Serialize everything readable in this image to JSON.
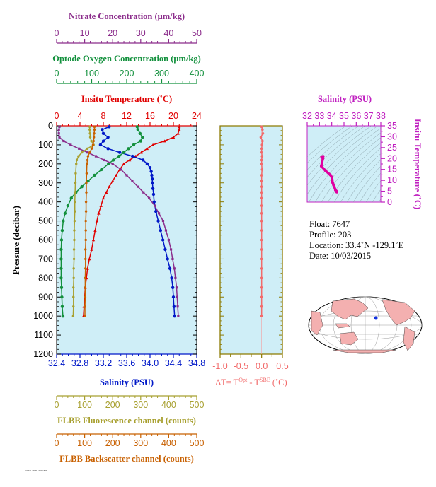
{
  "colors": {
    "plot_bg": "#cfeef7",
    "nitrate": "#8b2c8b",
    "oxygen": "#12903c",
    "temperature": "#e00000",
    "salinity": "#0018c8",
    "fluorescence": "#a8a030",
    "backscatter": "#c86000",
    "delta_t": "#f26b6b",
    "ts_curve": "#e000a0",
    "ts_axis": "#c020c0",
    "frame_olive": "#8c7a00"
  },
  "axes": {
    "nitrate": {
      "label": "Nitrate Concentration (μm/kg)",
      "ticks": [
        "0",
        "10",
        "20",
        "30",
        "40",
        "50"
      ]
    },
    "oxygen": {
      "label": "Optode Oxygen Concentration (μm/kg)",
      "ticks": [
        "0",
        "100",
        "200",
        "300",
        "400"
      ]
    },
    "temperature": {
      "label": "Insitu Temperature (˚C)",
      "ticks": [
        "0",
        "4",
        "8",
        "12",
        "16",
        "20",
        "24"
      ]
    },
    "salinity": {
      "label": "Salinity (PSU)",
      "ticks": [
        "32.4",
        "32.8",
        "33.2",
        "33.6",
        "34.0",
        "34.4",
        "34.8"
      ]
    },
    "fluorescence": {
      "label": "FLBB Fluorescence channel (counts)",
      "ticks": [
        "0",
        "100",
        "200",
        "300",
        "400",
        "500"
      ]
    },
    "backscatter": {
      "label": "FLBB Backscatter channel (counts)",
      "ticks": [
        "0",
        "100",
        "200",
        "300",
        "400",
        "500"
      ]
    },
    "pressure": {
      "label": "Pressure (decibar)",
      "ticks": [
        "0",
        "100",
        "200",
        "300",
        "400",
        "500",
        "600",
        "700",
        "800",
        "900",
        "1000",
        "1100",
        "1200"
      ]
    },
    "delta_t": {
      "label_main": "∆T= T",
      "label_sup1": "Opt",
      "label_mid": " - T",
      "label_sup2": "SBE",
      "label_end": " (˚C)",
      "ticks": [
        "-1.0",
        "-0.5",
        "0.0",
        "0.5"
      ]
    },
    "ts_salinity": {
      "label": "Salinity (PSU)",
      "ticks": [
        "32",
        "33",
        "34",
        "35",
        "36",
        "37",
        "38"
      ]
    },
    "ts_temperature": {
      "label": "Insitu Temperature (˚C)",
      "ticks": [
        "0",
        "5",
        "10",
        "15",
        "20",
        "25",
        "30",
        "35"
      ]
    }
  },
  "info": {
    "float_line": "Float:  7647",
    "profile_line": "Profile:  203",
    "location_line": "Location:  33.4˚N  -129.1˚E",
    "date_line": "Date:  10/03/2015"
  },
  "footer_tiny": "AOML 2015-10-03 T00",
  "chart_data": [
    {
      "type": "line",
      "title": "",
      "ylabel": "Pressure (decibar)",
      "ylim": [
        1200,
        0
      ],
      "series": [
        {
          "name": "Insitu Temperature (˚C)",
          "axis": "temperature",
          "xlim": [
            0,
            24
          ],
          "pressure": [
            5,
            20,
            40,
            60,
            80,
            100,
            120,
            140,
            160,
            180,
            200,
            230,
            260,
            290,
            320,
            350,
            380,
            420,
            460,
            500,
            550,
            600,
            650,
            700,
            750,
            800,
            850,
            900,
            950,
            1000
          ],
          "values": [
            21.0,
            21.0,
            20.8,
            20.0,
            18.5,
            16.5,
            15.5,
            14.5,
            13.5,
            12.5,
            11.5,
            10.8,
            10.2,
            9.6,
            9.0,
            8.5,
            8.0,
            7.6,
            7.2,
            6.9,
            6.6,
            6.3,
            6.0,
            5.6,
            5.3,
            5.1,
            4.9,
            4.8,
            4.7,
            4.6
          ]
        },
        {
          "name": "Salinity (PSU)",
          "axis": "salinity",
          "xlim": [
            32.4,
            34.8
          ],
          "pressure": [
            5,
            20,
            40,
            60,
            80,
            100,
            120,
            140,
            160,
            180,
            200,
            220,
            240,
            260,
            280,
            300,
            330,
            360,
            400,
            450,
            500,
            550,
            600,
            650,
            700,
            750,
            800,
            850,
            900,
            950,
            1000
          ],
          "values": [
            33.3,
            33.18,
            33.2,
            33.28,
            33.2,
            33.15,
            33.28,
            33.48,
            33.7,
            33.88,
            33.95,
            34.0,
            34.02,
            34.03,
            34.04,
            34.04,
            34.05,
            34.06,
            34.07,
            34.1,
            34.14,
            34.18,
            34.22,
            34.26,
            34.3,
            34.34,
            34.37,
            34.39,
            34.4,
            34.41,
            34.42
          ]
        },
        {
          "name": "Optode Oxygen Concentration (μm/kg)",
          "axis": "oxygen",
          "xlim": [
            0,
            400
          ],
          "pressure": [
            5,
            20,
            40,
            60,
            80,
            100,
            120,
            140,
            160,
            180,
            200,
            230,
            260,
            290,
            320,
            350,
            380,
            420,
            460,
            500,
            550,
            600,
            650,
            700,
            750,
            800,
            850,
            900,
            950,
            1000
          ],
          "values": [
            230,
            232,
            238,
            245,
            240,
            220,
            205,
            192,
            178,
            162,
            148,
            128,
            108,
            90,
            72,
            55,
            42,
            32,
            24,
            19,
            16,
            14,
            13,
            13,
            13,
            13,
            14,
            15,
            16,
            18
          ]
        },
        {
          "name": "Nitrate Concentration (μm/kg)",
          "axis": "nitrate",
          "xlim": [
            0,
            50
          ],
          "pressure": [
            5,
            20,
            40,
            60,
            80,
            100,
            120,
            140,
            160,
            180,
            200,
            230,
            260,
            290,
            320,
            350,
            380,
            420,
            460,
            500,
            550,
            600,
            650,
            700,
            750,
            800,
            850,
            900,
            950,
            1000
          ],
          "values": [
            1.0,
            0.8,
            0.8,
            1.0,
            2.5,
            5.0,
            8.0,
            11.0,
            14.0,
            17.0,
            20.0,
            23.0,
            25.0,
            27.0,
            29.0,
            31.0,
            33.0,
            35.0,
            36.5,
            38.0,
            39.0,
            40.0,
            40.8,
            41.4,
            42.0,
            42.4,
            42.8,
            43.0,
            43.2,
            43.4
          ]
        },
        {
          "name": "FLBB Fluorescence channel (counts)",
          "axis": "fluorescence",
          "xlim": [
            0,
            500
          ],
          "pressure": [
            5,
            20,
            40,
            60,
            80,
            100,
            120,
            140,
            160,
            180,
            200,
            250,
            300,
            350,
            400,
            450,
            500,
            550,
            600,
            650,
            700,
            750,
            800,
            850,
            900,
            950,
            1000
          ],
          "values": [
            118,
            118,
            119,
            120,
            124,
            132,
            110,
            90,
            78,
            72,
            70,
            68,
            67,
            66,
            65,
            65,
            64,
            63,
            63,
            62,
            62,
            61,
            61,
            60,
            60,
            60,
            59
          ]
        },
        {
          "name": "FLBB Backscatter channel (counts)",
          "axis": "backscatter",
          "xlim": [
            0,
            500
          ],
          "pressure": [
            5,
            20,
            40,
            60,
            80,
            100,
            120,
            140,
            160,
            180,
            200,
            250,
            300,
            350,
            400,
            450,
            500,
            550,
            600,
            650,
            700,
            750,
            800,
            850,
            900,
            950,
            1000
          ],
          "values": [
            135,
            135,
            134,
            133,
            132,
            130,
            125,
            118,
            112,
            110,
            108,
            107,
            106,
            106,
            105,
            105,
            104,
            104,
            104,
            103,
            103,
            103,
            102,
            102,
            102,
            101,
            101
          ]
        }
      ]
    },
    {
      "type": "scatter",
      "xlabel": "∆T= T^Opt - T^SBE (˚C)",
      "ylabel": "",
      "xlim": [
        -1.0,
        0.5
      ],
      "ylim": [
        1200,
        0
      ],
      "pressure": [
        5,
        20,
        40,
        60,
        80,
        100,
        120,
        140,
        160,
        180,
        200,
        230,
        260,
        290,
        320,
        350,
        380,
        420,
        460,
        500,
        550,
        600,
        650,
        700,
        750,
        800,
        850,
        900,
        950,
        1000
      ],
      "values": [
        0.0,
        0.02,
        0.03,
        -0.02,
        0.02,
        0.01,
        0.0,
        0.0,
        0.01,
        0.0,
        0.0,
        0.01,
        0.0,
        0.0,
        0.0,
        0.0,
        0.0,
        0.0,
        0.0,
        0.0,
        0.0,
        0.0,
        0.0,
        0.0,
        0.0,
        0.0,
        0.0,
        0.0,
        0.0,
        0.0
      ]
    },
    {
      "type": "line",
      "xlabel": "Salinity (PSU)",
      "ylabel": "Insitu Temperature (˚C)",
      "xlim": [
        32,
        38
      ],
      "ylim": [
        0,
        35
      ],
      "salinity": [
        33.3,
        33.18,
        33.28,
        33.15,
        33.48,
        33.88,
        34.0,
        34.04,
        34.07,
        34.14,
        34.22,
        34.3,
        34.37,
        34.41,
        34.42
      ],
      "temperature": [
        21.0,
        20.8,
        20.0,
        16.5,
        14.5,
        12.5,
        11.5,
        10.2,
        9.0,
        8.0,
        6.9,
        5.6,
        5.1,
        4.7,
        4.6
      ]
    }
  ]
}
